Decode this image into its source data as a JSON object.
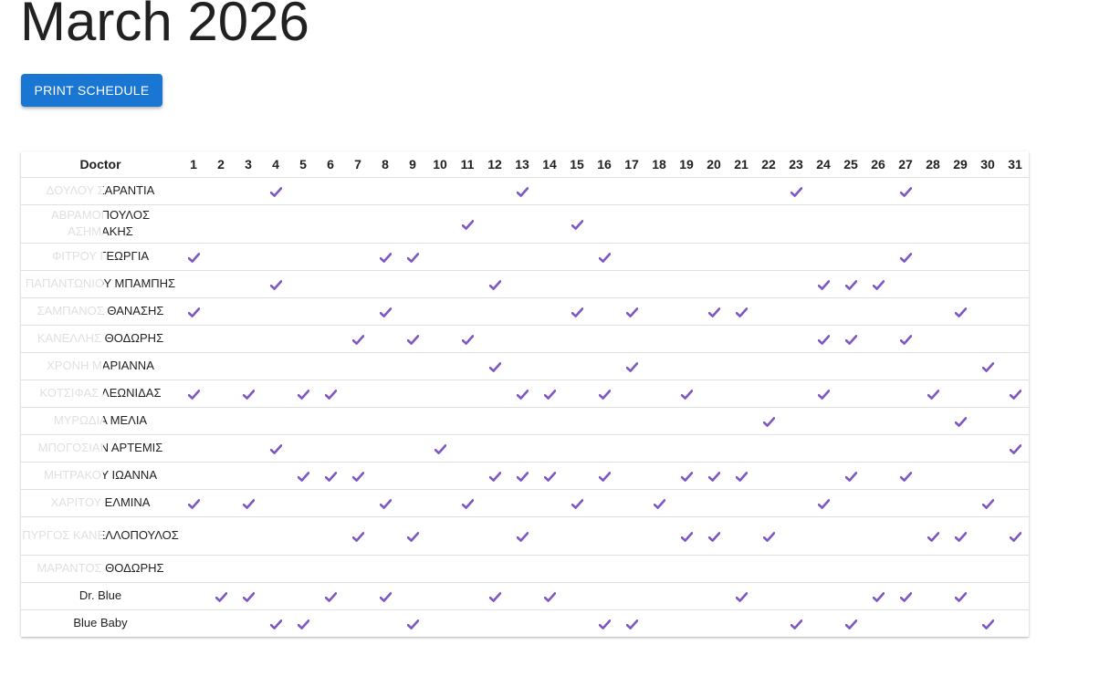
{
  "title": "March 2026",
  "print_button": "PRINT SCHEDULE",
  "table": {
    "doctor_header": "Doctor",
    "days": [
      "1",
      "2",
      "3",
      "4",
      "5",
      "6",
      "7",
      "8",
      "9",
      "10",
      "11",
      "12",
      "13",
      "14",
      "15",
      "16",
      "17",
      "18",
      "19",
      "20",
      "21",
      "22",
      "23",
      "24",
      "25",
      "26",
      "27",
      "28",
      "29",
      "30",
      "31"
    ],
    "check_color": "#7e57c2",
    "rows": [
      {
        "name": "ΔΟΥΛΟΥ ΣΑΡΑΝΤΙΑ",
        "fade": true,
        "days": [
          4,
          13,
          23,
          27
        ]
      },
      {
        "name": "ΑΒΡΑΜΟΠΟΥΛΟΣ ΑΣΗΜΑΚΗΣ",
        "fade": true,
        "tall": true,
        "days": [
          11,
          15
        ]
      },
      {
        "name": "ΦΙΤΡΟΥ ΓΕΩΡΓΙΑ",
        "fade": true,
        "days": [
          1,
          8,
          9,
          16,
          27
        ]
      },
      {
        "name": "ΠΑΠΑΝΤΩΝΙΟΥ ΜΠΑΜΠΗΣ",
        "fade": true,
        "days": [
          4,
          12,
          24,
          25,
          26
        ]
      },
      {
        "name": "ΣΑΜΠΑΝΟΣ ΘΑΝΑΣΗΣ",
        "fade": true,
        "days": [
          1,
          8,
          15,
          17,
          20,
          21,
          29
        ]
      },
      {
        "name": "ΚΑΝΕΛΛΗΣ ΘΟΔΩΡΗΣ",
        "fade": true,
        "days": [
          7,
          9,
          11,
          24,
          25,
          27
        ]
      },
      {
        "name": "ΧΡΟΝΗ ΜΑΡΙΑΝΝΑ",
        "fade": true,
        "days": [
          12,
          17,
          30
        ]
      },
      {
        "name": "ΚΟΤΣΙΦΑΣ ΛΕΩΝΙΔΑΣ",
        "fade": true,
        "days": [
          1,
          3,
          5,
          6,
          13,
          14,
          16,
          19,
          24,
          28,
          31
        ]
      },
      {
        "name": "ΜΥΡΩΔΙΑ ΜΕΛΙΑ",
        "fade": true,
        "days": [
          22,
          29
        ]
      },
      {
        "name": "ΜΠΟΓΟΣΙΑΝ ΑΡΤΕΜΙΣ",
        "fade": true,
        "days": [
          4,
          10,
          31
        ]
      },
      {
        "name": "ΜΗΤΡΑΚΟΥ ΙΩΑΝΝΑ",
        "fade": true,
        "days": [
          5,
          6,
          7,
          12,
          13,
          14,
          16,
          19,
          20,
          21,
          25,
          27
        ]
      },
      {
        "name": "ΧΑΡΙΤΟΥ ΕΛΜΙΝΑ",
        "fade": true,
        "days": [
          1,
          3,
          8,
          11,
          15,
          18,
          24,
          30
        ]
      },
      {
        "name": "ΠΥΡΓΟΣ ΚΑΝΕΛΛΟΠΟΥΛΟΣ",
        "fade": true,
        "tall": true,
        "days": [
          7,
          9,
          13,
          19,
          20,
          22,
          28,
          29,
          31
        ]
      },
      {
        "name": "ΜΑΡΑΝΤΟΣ ΘΟΔΩΡΗΣ",
        "fade": true,
        "days": []
      },
      {
        "name": "Dr. Blue",
        "fade": false,
        "days": [
          2,
          3,
          6,
          8,
          12,
          14,
          21,
          26,
          27,
          29
        ]
      },
      {
        "name": "Blue Baby",
        "fade": false,
        "days": [
          4,
          5,
          9,
          16,
          17,
          23,
          25,
          30
        ]
      }
    ]
  }
}
